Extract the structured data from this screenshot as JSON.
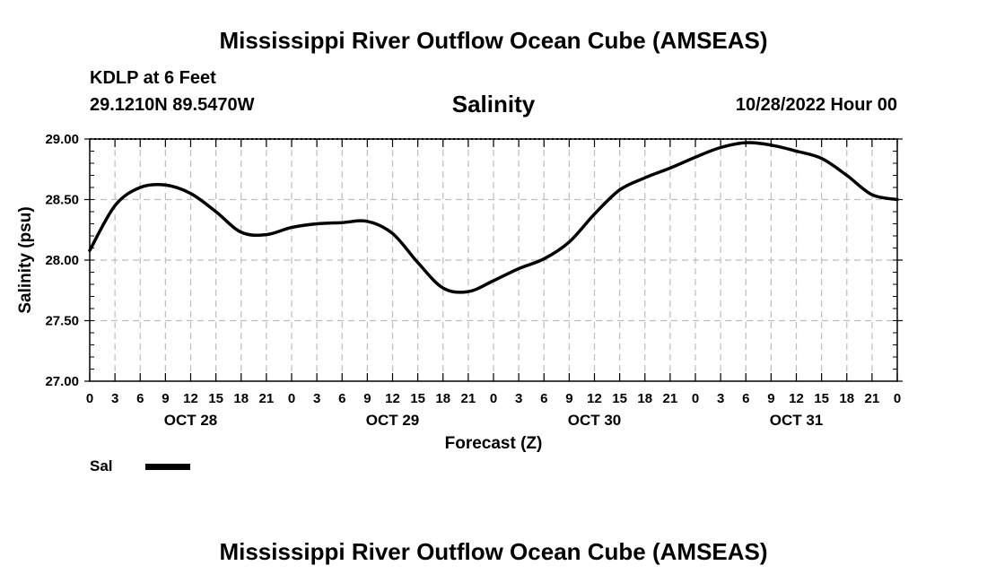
{
  "header": {
    "title": "Mississippi River Outflow Ocean Cube (AMSEAS)",
    "station": "KDLP at 6 Feet",
    "coords": "29.1210N  89.5470W",
    "variable": "Salinity",
    "date": "10/28/2022 Hour 00"
  },
  "legend": {
    "label": "Sal",
    "color": "#000000"
  },
  "footer": {
    "title": "Mississippi River Outflow Ocean Cube (AMSEAS)"
  },
  "chart_data": {
    "type": "line",
    "title": "Salinity",
    "xlabel": "Forecast (Z)",
    "ylabel": "Salinity (psu)",
    "xlim": [
      0,
      96
    ],
    "ylim": [
      27.0,
      29.0
    ],
    "x_tick_step_hours": 3,
    "x_tick_labels": [
      "0",
      "3",
      "6",
      "9",
      "12",
      "15",
      "18",
      "21",
      "0",
      "3",
      "6",
      "9",
      "12",
      "15",
      "18",
      "21",
      "0",
      "3",
      "6",
      "9",
      "12",
      "15",
      "18",
      "21",
      "0",
      "3",
      "6",
      "9",
      "12",
      "15",
      "18",
      "21",
      "0"
    ],
    "day_labels": [
      {
        "label": "OCT 28",
        "hour": 12
      },
      {
        "label": "OCT 29",
        "hour": 36
      },
      {
        "label": "OCT 30",
        "hour": 60
      },
      {
        "label": "OCT 31",
        "hour": 84
      }
    ],
    "y_ticks": [
      "27.00",
      "27.50",
      "28.00",
      "28.50",
      "29.00"
    ],
    "grid": true,
    "series": [
      {
        "name": "Sal",
        "x": [
          0,
          3,
          6,
          9,
          12,
          15,
          18,
          21,
          24,
          27,
          30,
          33,
          36,
          39,
          42,
          45,
          48,
          51,
          54,
          57,
          60,
          63,
          66,
          69,
          72,
          75,
          78,
          81,
          84,
          87,
          90,
          93,
          96
        ],
        "values": [
          28.08,
          28.45,
          28.6,
          28.62,
          28.55,
          28.4,
          28.23,
          28.21,
          28.27,
          28.3,
          28.31,
          28.32,
          28.22,
          27.98,
          27.77,
          27.74,
          27.83,
          27.93,
          28.01,
          28.15,
          28.38,
          28.58,
          28.68,
          28.76,
          28.85,
          28.93,
          28.97,
          28.95,
          28.9,
          28.84,
          28.7,
          28.54,
          28.5
        ]
      }
    ]
  }
}
